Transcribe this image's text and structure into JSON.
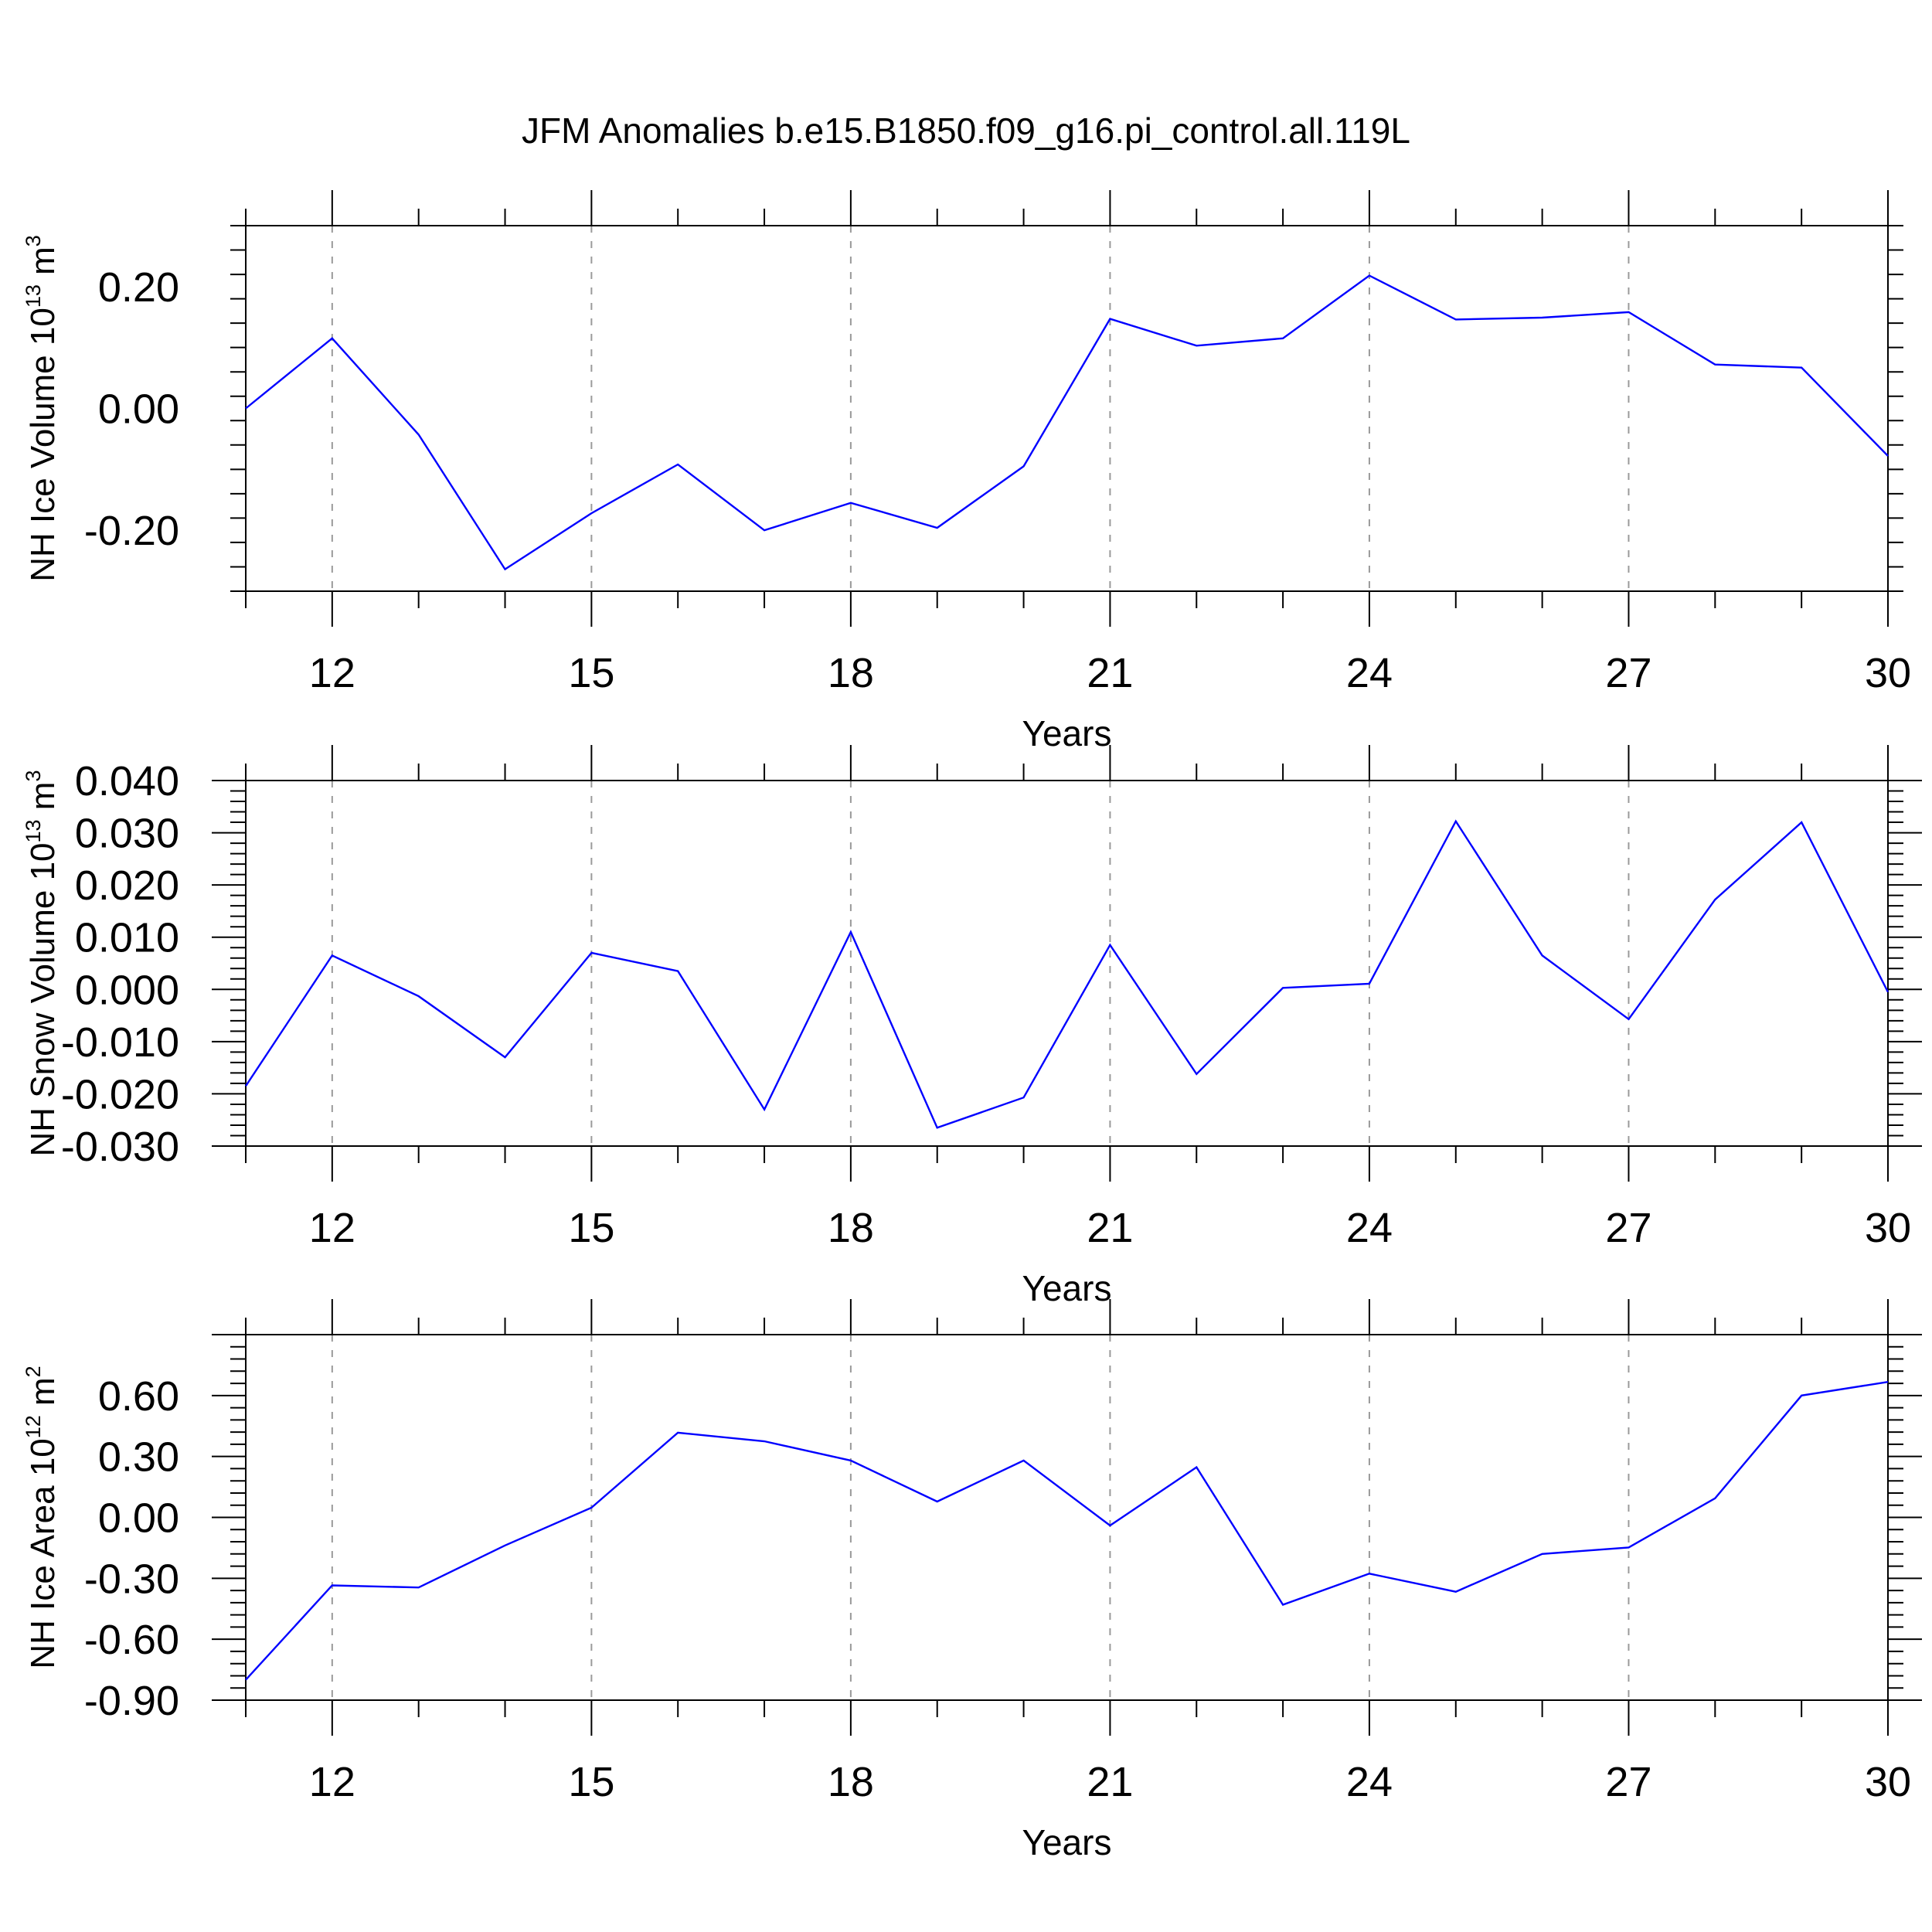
{
  "title": "JFM Anomalies b.e15.B1850.f09_g16.pi_control.all.119L",
  "colors": {
    "line": "#0000ff",
    "axis": "#000000",
    "grid": "#9a9a9a"
  },
  "chart_data": [
    {
      "type": "line",
      "ylabel": {
        "text": "NH Ice Volume 10",
        "exp": "13",
        "unit": " m",
        "unit_exp": "3"
      },
      "xlabel": "Years",
      "xlim": [
        11,
        30
      ],
      "ylim": [
        -0.3,
        0.3
      ],
      "x_major_ticks": [
        12,
        15,
        18,
        21,
        24,
        27,
        30
      ],
      "y_major_ticks": [
        -0.2,
        0.0,
        0.2
      ],
      "y_tick_labels": [
        "-0.20",
        "0.00",
        "0.20"
      ],
      "x": [
        11,
        12,
        13,
        14,
        15,
        16,
        17,
        18,
        19,
        20,
        21,
        22,
        23,
        24,
        25,
        26,
        27,
        28,
        29,
        30
      ],
      "series": [
        {
          "name": "NH Ice Volume",
          "values": [
            0.0,
            0.115,
            -0.043,
            -0.264,
            -0.172,
            -0.092,
            -0.2,
            -0.155,
            -0.196,
            -0.095,
            0.147,
            0.103,
            0.115,
            0.218,
            0.146,
            0.149,
            0.158,
            0.072,
            0.067,
            -0.078
          ]
        }
      ]
    },
    {
      "type": "line",
      "ylabel": {
        "text": "NH Snow Volume 10",
        "exp": "13",
        "unit": " m",
        "unit_exp": "3"
      },
      "xlabel": "Years",
      "xlim": [
        11,
        30
      ],
      "ylim": [
        -0.03,
        0.04
      ],
      "x_major_ticks": [
        12,
        15,
        18,
        21,
        24,
        27,
        30
      ],
      "y_major_ticks": [
        -0.03,
        -0.02,
        -0.01,
        0.0,
        0.01,
        0.02,
        0.03,
        0.04
      ],
      "y_tick_labels": [
        "-0.030",
        "-0.020",
        "-0.010",
        "0.000",
        "0.010",
        "0.020",
        "0.030",
        "0.040"
      ],
      "x": [
        11,
        12,
        13,
        14,
        15,
        16,
        17,
        18,
        19,
        20,
        21,
        22,
        23,
        24,
        25,
        26,
        27,
        28,
        29,
        30
      ],
      "series": [
        {
          "name": "NH Snow Volume",
          "values": [
            -0.0185,
            0.0065,
            -0.0013,
            -0.013,
            0.007,
            0.0035,
            -0.023,
            0.011,
            -0.0265,
            -0.0207,
            0.0085,
            -0.0162,
            0.0003,
            0.0011,
            0.0322,
            0.0065,
            -0.0057,
            0.0172,
            0.032,
            -0.0005
          ]
        }
      ]
    },
    {
      "type": "line",
      "ylabel": {
        "text": "NH Ice Area 10",
        "exp": "12",
        "unit": " m",
        "unit_exp": "2"
      },
      "xlabel": "Years",
      "xlim": [
        11,
        30
      ],
      "ylim": [
        -0.9,
        0.9
      ],
      "x_major_ticks": [
        12,
        15,
        18,
        21,
        24,
        27,
        30
      ],
      "y_major_ticks": [
        -0.9,
        -0.6,
        -0.3,
        0.0,
        0.3,
        0.6
      ],
      "y_tick_labels": [
        "-0.90",
        "-0.60",
        "-0.30",
        "0.00",
        "0.30",
        "0.60"
      ],
      "x": [
        11,
        12,
        13,
        14,
        15,
        16,
        17,
        18,
        19,
        20,
        21,
        22,
        23,
        24,
        25,
        26,
        27,
        28,
        29,
        30
      ],
      "series": [
        {
          "name": "NH Ice Area",
          "values": [
            -0.8,
            -0.335,
            -0.345,
            -0.138,
            0.048,
            0.417,
            0.375,
            0.28,
            0.078,
            0.28,
            -0.04,
            0.247,
            -0.43,
            -0.277,
            -0.366,
            -0.18,
            -0.148,
            0.094,
            0.6,
            0.667
          ]
        }
      ]
    }
  ]
}
